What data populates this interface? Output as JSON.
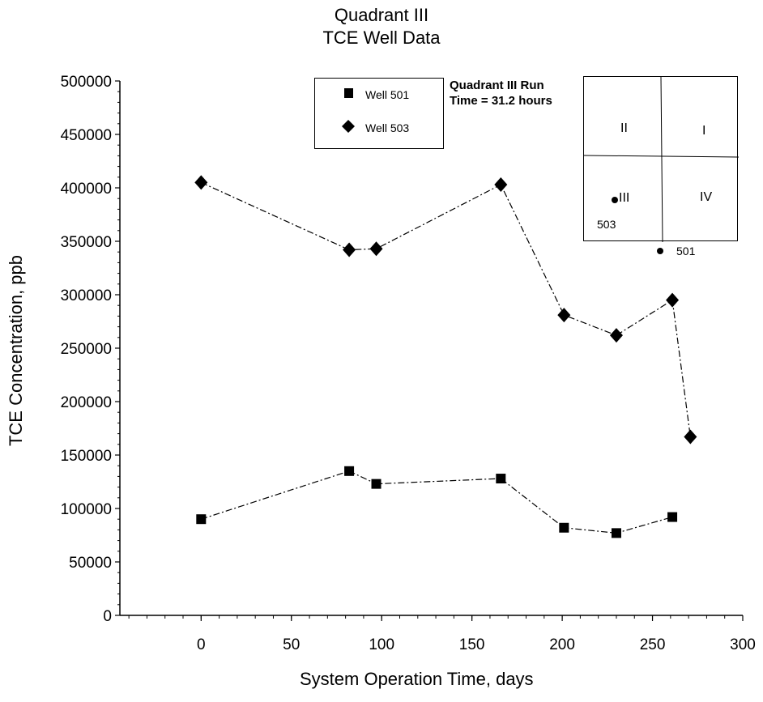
{
  "chart_data": {
    "type": "line",
    "title": "Quadrant III",
    "subtitle": "TCE Well Data",
    "xlabel": "System Operation Time, days",
    "ylabel": "TCE Concentration,     ppb",
    "xlim": [
      -45,
      300
    ],
    "ylim": [
      0,
      500000
    ],
    "x_ticks": [
      0,
      50,
      100,
      150,
      200,
      250,
      300
    ],
    "y_ticks": [
      0,
      50000,
      100000,
      150000,
      200000,
      250000,
      300000,
      350000,
      400000,
      450000,
      500000
    ],
    "grid": false,
    "legend_position": "top-center",
    "series": [
      {
        "name": "Well 501",
        "marker": "square",
        "line_style": "dash-dot",
        "x": [
          0,
          82,
          97,
          166,
          201,
          230,
          261
        ],
        "y": [
          90000,
          135000,
          123000,
          128000,
          82000,
          77000,
          92000
        ]
      },
      {
        "name": "Well 503",
        "marker": "diamond",
        "line_style": "dash-dot",
        "x": [
          0,
          82,
          97,
          166,
          201,
          230,
          261,
          271
        ],
        "y": [
          405000,
          342000,
          343000,
          403000,
          281000,
          262000,
          295000,
          167000
        ]
      }
    ],
    "annotation": {
      "line1": "Quadrant III Run",
      "line2": "Time = 31.2 hours"
    },
    "inset_map": {
      "quadrants": [
        "II",
        "I",
        "III",
        "IV"
      ],
      "wells": [
        "503",
        "501"
      ]
    }
  }
}
